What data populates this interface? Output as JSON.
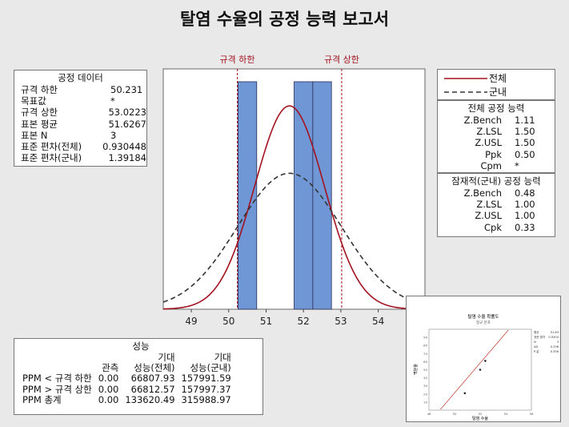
{
  "title": "탈염 수율의 공정 능력 보고서",
  "process_data": {
    "header": "공정 데이터",
    "rows": [
      {
        "label": "규격 하한",
        "value": "50.231"
      },
      {
        "label": "목표값",
        "value": "*"
      },
      {
        "label": "규격 상한",
        "value": "53.0223"
      },
      {
        "label": "표본 평균",
        "value": "51.6267"
      },
      {
        "label": "표본 N",
        "value": "3"
      },
      {
        "label": "표준 편차(전체)",
        "value": "0.930448"
      },
      {
        "label": "표준 편차(군내)",
        "value": "1.39184"
      }
    ]
  },
  "legend": {
    "overall": "전체",
    "within": "군내",
    "overall_color": "#a3121e",
    "within_color": "#333333"
  },
  "overall_capability": {
    "header": "전체 공정 능력",
    "rows": [
      {
        "label": "Z.Bench",
        "value": "1.11"
      },
      {
        "label": "Z.LSL",
        "value": "1.50"
      },
      {
        "label": "Z.USL",
        "value": "1.50"
      },
      {
        "label": "Ppk",
        "value": "0.50"
      },
      {
        "label": "Cpm",
        "value": "*"
      }
    ]
  },
  "potential_capability": {
    "header": "잠재적(군내) 공정 능력",
    "rows": [
      {
        "label": "Z.Bench",
        "value": "0.48"
      },
      {
        "label": "Z.LSL",
        "value": "1.00"
      },
      {
        "label": "Z.USL",
        "value": "1.00"
      },
      {
        "label": "Cpk",
        "value": "0.33"
      }
    ]
  },
  "performance": {
    "header": "성능",
    "col_headers_top": [
      "",
      "",
      "기대",
      "기대"
    ],
    "col_headers": [
      "",
      "관측",
      "성능(전체)",
      "성능(군내)"
    ],
    "rows": [
      {
        "label": "PPM < 규격 하한",
        "observed": "0.00",
        "overall": "66807.93",
        "within": "157991.59"
      },
      {
        "label": "PPM > 규격 상한",
        "observed": "0.00",
        "overall": "66812.57",
        "within": "157997.37"
      },
      {
        "label": "PPM 총계",
        "observed": "0.00",
        "overall": "133620.49",
        "within": "315988.97"
      }
    ]
  },
  "chart_data": [
    {
      "type": "bar",
      "subtype": "histogram-with-normal-curves",
      "spec_labels": {
        "lsl": "규격 하한",
        "usl": "규격 상한"
      },
      "lsl": 50.231,
      "usl": 53.0223,
      "bins": [
        {
          "from": 50.25,
          "to": 50.75,
          "count": 1
        },
        {
          "from": 51.75,
          "to": 52.25,
          "count": 1
        },
        {
          "from": 52.25,
          "to": 52.75,
          "count": 1
        }
      ],
      "xlim": [
        48.25,
        55.25
      ],
      "x_ticks": [
        "49",
        "50",
        "51",
        "52",
        "53",
        "54"
      ],
      "x_tick_values": [
        49,
        50,
        51,
        52,
        53,
        54
      ],
      "mean": 51.6267,
      "stdev_overall": 0.930448,
      "stdev_within": 1.39184,
      "bar_color": "#6f97d6",
      "spec_line_color": "#a3121e"
    },
    {
      "type": "scatter",
      "title": "탈염 수율 확률도",
      "subtitle": "정규 분포",
      "xlabel": "탈염 수율",
      "ylabel": "백분율",
      "xlim": [
        48,
        56
      ],
      "x_ticks": [
        "48",
        "50",
        "52",
        "54",
        "56"
      ],
      "x_tick_values": [
        48,
        50,
        52,
        54,
        56
      ],
      "ylim": [
        0,
        100
      ],
      "y_ticks": [
        "10",
        "20",
        "30",
        "40",
        "50",
        "60",
        "70",
        "80",
        "90"
      ],
      "y_tick_values": [
        10,
        20,
        30,
        40,
        50,
        60,
        70,
        80,
        90
      ],
      "points": [
        {
          "x": 50.8,
          "y": 21
        },
        {
          "x": 52.0,
          "y": 50
        },
        {
          "x": 52.4,
          "y": 61
        }
      ],
      "fit_line": [
        {
          "x": 48.9,
          "y": 1
        },
        {
          "x": 54.2,
          "y": 99
        }
      ],
      "stats": [
        {
          "label": "평균",
          "value": "51.63"
        },
        {
          "label": "표준 편차",
          "value": "0.9304"
        },
        {
          "label": "N",
          "value": "3"
        },
        {
          "label": "AD",
          "value": "0.296"
        },
        {
          "label": "P-값",
          "value": "0.356"
        }
      ]
    }
  ]
}
